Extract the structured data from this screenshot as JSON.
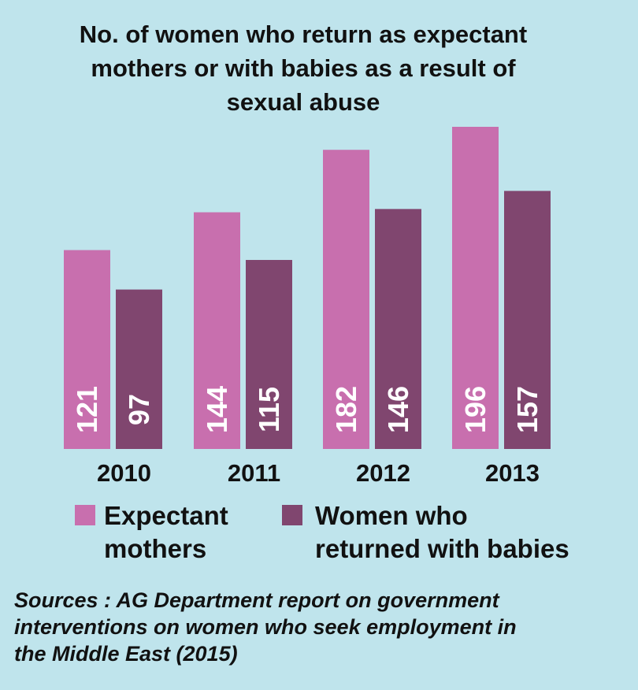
{
  "title_lines": [
    "No. of women who return as expectant",
    "mothers or with babies as a result of",
    "sexual abuse"
  ],
  "chart_data": {
    "type": "bar",
    "title": "No. of women who return as expectant mothers or with babies as a result of sexual abuse",
    "categories": [
      "2010",
      "2011",
      "2012",
      "2013"
    ],
    "series": [
      {
        "name": "Expectant mothers",
        "color": "#c86fae",
        "values": [
          121,
          144,
          182,
          196
        ]
      },
      {
        "name": "Women who returned with babies",
        "color": "#80466f",
        "values": [
          97,
          115,
          146,
          157
        ]
      }
    ],
    "ylim": [
      0,
      196
    ],
    "xlabel": "",
    "ylabel": ""
  },
  "legend": {
    "expectant": {
      "line1": "Expectant",
      "line2": "mothers",
      "color": "#c86fae"
    },
    "babies": {
      "line1": "Women who",
      "line2": "returned with babies",
      "color": "#80466f"
    }
  },
  "source_lines": [
    "Sources : AG Department report on government",
    "interventions on women who seek employment in",
    "the Middle East (2015)"
  ]
}
